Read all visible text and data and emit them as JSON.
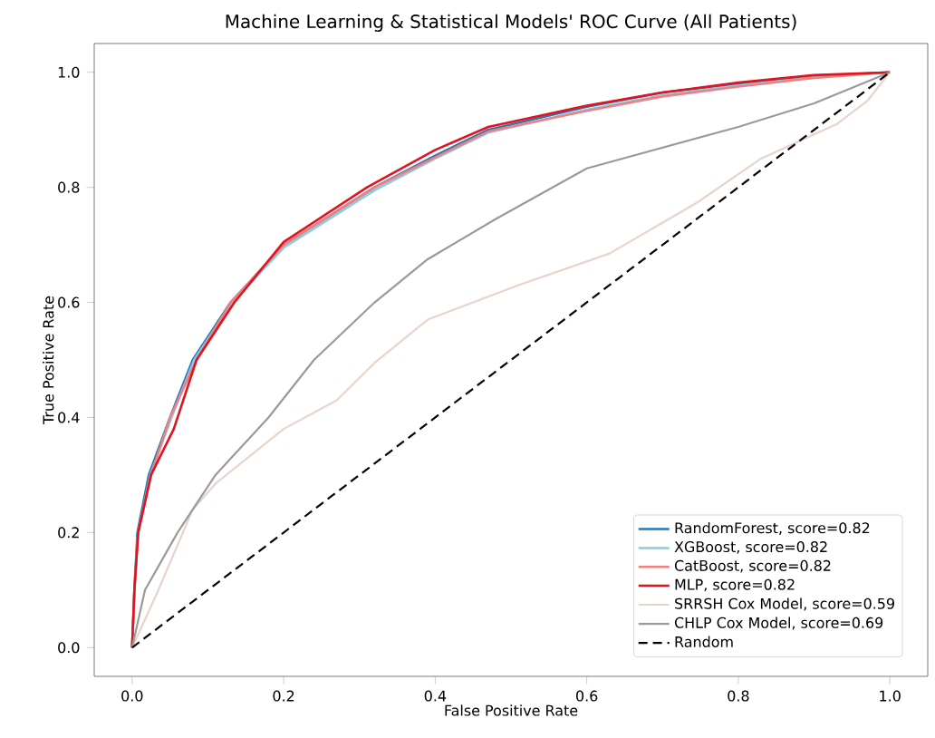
{
  "chart_data": {
    "type": "line",
    "title": "Machine Learning & Statistical Models' ROC Curve (All Patients)",
    "xlabel": "False Positive Rate",
    "ylabel": "True Positive Rate",
    "xlim": [
      -0.05,
      1.05
    ],
    "ylim": [
      -0.05,
      1.05
    ],
    "xticks": [
      {
        "value": 0,
        "label": "0.0"
      },
      0.2,
      0.4,
      0.6,
      0.8,
      {
        "value": 1,
        "label": "1.0"
      }
    ],
    "yticks": [
      {
        "value": 0,
        "label": "0.0"
      },
      0.2,
      0.4,
      0.6,
      0.8,
      {
        "value": 1,
        "label": "1.0"
      }
    ],
    "legend": "bottom right",
    "grid": false,
    "marker": "none",
    "series": [
      {
        "name": "RandomForest, score=0.82",
        "color": "#2878b5",
        "x": [
          0,
          0.003,
          0.007,
          0.022,
          0.05,
          0.08,
          0.13,
          0.2,
          0.32,
          0.4,
          0.47,
          0.6,
          0.7,
          0.8,
          0.9,
          1
        ],
        "values": [
          0,
          0.1,
          0.2,
          0.3,
          0.4,
          0.5,
          0.6,
          0.7,
          0.8,
          0.855,
          0.9,
          0.94,
          0.965,
          0.98,
          0.993,
          1
        ]
      },
      {
        "name": "XGBoost, score=0.82",
        "color": "#87cde8",
        "x": [
          0,
          0.003,
          0.008,
          0.024,
          0.052,
          0.082,
          0.132,
          0.2,
          0.32,
          0.4,
          0.47,
          0.6,
          0.7,
          0.8,
          0.9,
          1
        ],
        "values": [
          0,
          0.1,
          0.2,
          0.3,
          0.4,
          0.5,
          0.6,
          0.695,
          0.795,
          0.85,
          0.895,
          0.935,
          0.96,
          0.977,
          0.992,
          1
        ]
      },
      {
        "name": "CatBoost, score=0.82",
        "color": "#f08080",
        "x": [
          0,
          0.003,
          0.008,
          0.025,
          0.05,
          0.085,
          0.13,
          0.2,
          0.32,
          0.4,
          0.47,
          0.6,
          0.7,
          0.8,
          0.9,
          1
        ],
        "values": [
          0,
          0.1,
          0.2,
          0.3,
          0.4,
          0.5,
          0.6,
          0.7,
          0.8,
          0.852,
          0.897,
          0.933,
          0.958,
          0.975,
          0.99,
          1
        ]
      },
      {
        "name": "MLP, score=0.82",
        "color": "#e0141e",
        "x": [
          0,
          0.003,
          0.008,
          0.025,
          0.055,
          0.085,
          0.135,
          0.2,
          0.31,
          0.4,
          0.47,
          0.6,
          0.7,
          0.8,
          0.9,
          1
        ],
        "values": [
          0,
          0.1,
          0.2,
          0.3,
          0.38,
          0.5,
          0.6,
          0.705,
          0.8,
          0.865,
          0.905,
          0.942,
          0.965,
          0.982,
          0.995,
          1
        ]
      },
      {
        "name": "SRRSH Cox Model, score=0.59",
        "color": "#e8d4ca",
        "x": [
          0,
          0.033,
          0.08,
          0.11,
          0.2,
          0.27,
          0.32,
          0.39,
          0.51,
          0.63,
          0.745,
          0.83,
          0.93,
          0.97,
          1
        ],
        "values": [
          0,
          0.095,
          0.24,
          0.285,
          0.38,
          0.43,
          0.495,
          0.57,
          0.63,
          0.685,
          0.773,
          0.85,
          0.91,
          0.95,
          1
        ]
      },
      {
        "name": "CHLP Cox Model, score=0.69",
        "color": "#9a9a9a",
        "x": [
          0,
          0.017,
          0.06,
          0.11,
          0.18,
          0.24,
          0.32,
          0.39,
          0.48,
          0.6,
          0.8,
          0.9,
          1
        ],
        "values": [
          0,
          0.1,
          0.2,
          0.3,
          0.4,
          0.5,
          0.6,
          0.675,
          0.745,
          0.833,
          0.905,
          0.946,
          1
        ]
      },
      {
        "name": "Random",
        "color": "#000000",
        "line_style": "dashed",
        "x": [
          0,
          1
        ],
        "values": [
          0,
          1
        ]
      }
    ]
  }
}
